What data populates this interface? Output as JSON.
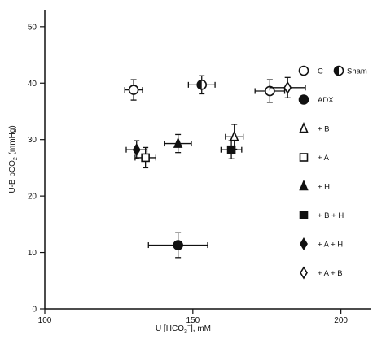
{
  "chart_data": {
    "type": "scatter",
    "xlabel": "U [HCO",
    "xlabel_sub": "3",
    "xlabel_sup": "−",
    "xlabel_tail": "], mM",
    "ylabel": "U-B pCO",
    "ylabel_sub": "2",
    "ylabel_tail": " (mmHg)",
    "xlim": [
      100,
      210
    ],
    "ylim": [
      0,
      53
    ],
    "x_ticks": [
      100,
      150,
      200
    ],
    "y_ticks": [
      0,
      10,
      20,
      30,
      40,
      50
    ],
    "grid": false,
    "legend_position": "right",
    "series": [
      {
        "name": "C",
        "marker": "circle-open",
        "points": [
          {
            "x": 130,
            "y": 38.8,
            "xerr": 3,
            "yerr": 1.8
          },
          {
            "x": 176,
            "y": 38.6,
            "xerr": 5,
            "yerr": 2
          }
        ]
      },
      {
        "name": "Sham",
        "marker": "circle-half",
        "points": [
          {
            "x": 153,
            "y": 39.7,
            "xerr": 4.5,
            "yerr": 1.6
          }
        ]
      },
      {
        "name": "ADX",
        "marker": "circle-filled",
        "points": [
          {
            "x": 145,
            "y": 11.3,
            "xerr": 10,
            "yerr": 2.2
          }
        ]
      },
      {
        "name": "+ B",
        "marker": "triangle-open",
        "points": [
          {
            "x": 164,
            "y": 30.5,
            "xerr": 3,
            "yerr": 2.2
          }
        ]
      },
      {
        "name": "+ A",
        "marker": "square-open",
        "points": [
          {
            "x": 134,
            "y": 26.8,
            "xerr": 3.5,
            "yerr": 1.8
          }
        ]
      },
      {
        "name": "+ H",
        "marker": "triangle-filled",
        "points": [
          {
            "x": 145,
            "y": 29.3,
            "xerr": 4.5,
            "yerr": 1.6
          }
        ]
      },
      {
        "name": "+ B + H",
        "marker": "square-filled",
        "points": [
          {
            "x": 163,
            "y": 28.2,
            "xerr": 3.5,
            "yerr": 1.6
          }
        ]
      },
      {
        "name": "+ A + H",
        "marker": "diamond-filled",
        "points": [
          {
            "x": 131,
            "y": 28.2,
            "xerr": 3.5,
            "yerr": 1.6
          }
        ]
      },
      {
        "name": "+ A + B",
        "marker": "diamond-open",
        "points": [
          {
            "x": 182,
            "y": 39.2,
            "xerr": 6,
            "yerr": 1.8
          }
        ]
      }
    ],
    "legend": [
      {
        "series": "C",
        "label": "C"
      },
      {
        "series": "Sham",
        "label": "Sham"
      },
      {
        "series": "ADX",
        "label": "ADX"
      },
      {
        "series": "+ B",
        "label": "+ B"
      },
      {
        "series": "+ A",
        "label": "+ A"
      },
      {
        "series": "+ H",
        "label": "+ H"
      },
      {
        "series": "+ B + H",
        "label": "+ B + H"
      },
      {
        "series": "+ A + H",
        "label": "+ A + H"
      },
      {
        "series": "+ A + B",
        "label": "+ A + B"
      }
    ]
  }
}
